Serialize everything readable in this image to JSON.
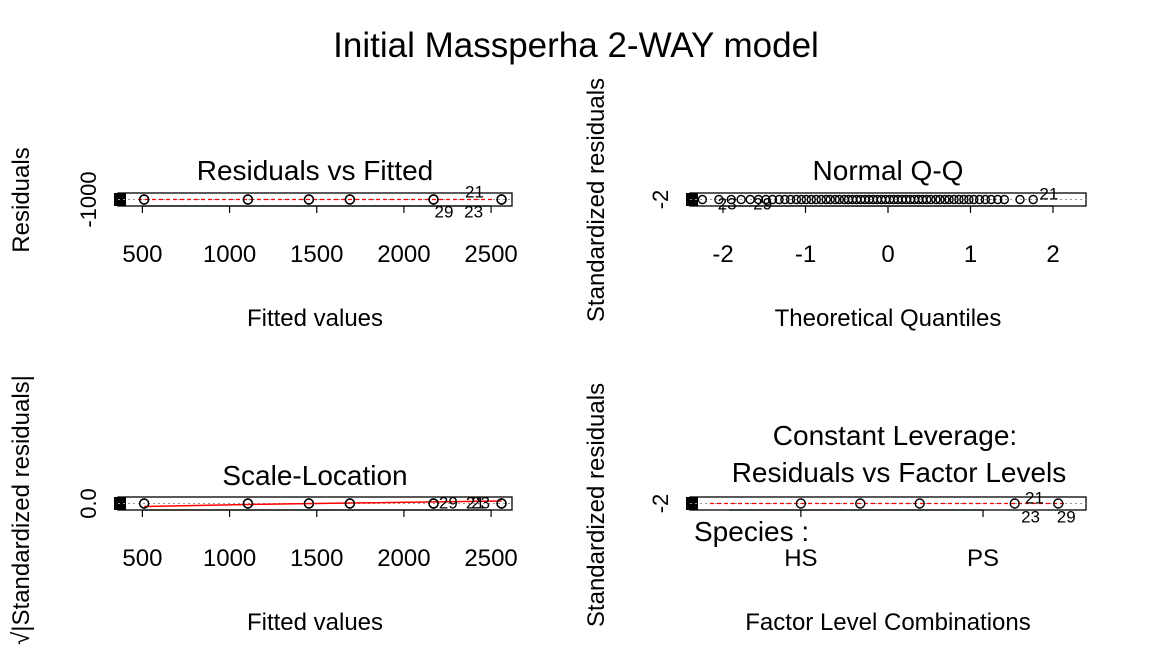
{
  "title": "Initial Massperha 2-WAY model",
  "chart_data": [
    {
      "id": "residuals-vs-fitted",
      "type": "scatter",
      "title": "Residuals vs Fitted",
      "xlabel": "Fitted values",
      "ylabel": "Residuals",
      "xticks": [
        500,
        1000,
        1500,
        2000,
        2500
      ],
      "yticks": [
        -1000
      ],
      "xlim": [
        360,
        2620
      ],
      "x": [
        510,
        510,
        1105,
        1105,
        1455,
        1455,
        1690,
        1690,
        2170,
        2170,
        2170,
        2560,
        2560,
        2560
      ],
      "y": [
        0,
        0,
        0,
        0,
        0,
        0,
        0,
        0,
        0,
        0,
        0,
        0,
        0,
        0
      ],
      "smoother_color": "#ff0000",
      "labels": [
        {
          "text": "21",
          "x": 2405
        },
        {
          "text": "29",
          "x": 2230
        },
        {
          "text": "23",
          "x": 2400
        }
      ]
    },
    {
      "id": "normal-qq",
      "type": "scatter",
      "title": "Normal Q-Q",
      "xlabel": "Theoretical Quantiles",
      "ylabel": "Standardized residuals",
      "xticks": [
        -2,
        -1,
        0,
        1,
        2
      ],
      "yticks": [
        -2
      ],
      "xlim": [
        -2.4,
        2.4
      ],
      "x": [
        -2.25,
        -2.05,
        -1.9,
        -1.78,
        -1.67,
        -1.57,
        -1.48,
        -1.4,
        -1.32,
        -1.25,
        -1.18,
        -1.11,
        -1.05,
        -0.99,
        -0.93,
        -0.87,
        -0.81,
        -0.75,
        -0.7,
        -0.64,
        -0.59,
        -0.53,
        -0.48,
        -0.43,
        -0.38,
        -0.33,
        -0.28,
        -0.23,
        -0.18,
        -0.13,
        -0.08,
        -0.03,
        0.02,
        0.07,
        0.12,
        0.17,
        0.22,
        0.27,
        0.32,
        0.37,
        0.42,
        0.47,
        0.52,
        0.58,
        0.63,
        0.69,
        0.74,
        0.8,
        0.86,
        0.92,
        0.98,
        1.04,
        1.11,
        1.18,
        1.25,
        1.33,
        1.41,
        1.6,
        1.76
      ],
      "labels": [
        {
          "text": "23",
          "x": -1.95
        },
        {
          "text": "29",
          "x": -1.52
        },
        {
          "text": "21",
          "x": 1.95
        }
      ]
    },
    {
      "id": "scale-location",
      "type": "scatter",
      "title": "Scale-Location",
      "xlabel": "Fitted values",
      "ylabel": "√|Standardized residuals|",
      "xticks": [
        500,
        1000,
        1500,
        2000,
        2500
      ],
      "yticks": [
        0.0
      ],
      "xlim": [
        360,
        2620
      ],
      "x": [
        510,
        510,
        1105,
        1105,
        1455,
        1455,
        1690,
        1690,
        2170,
        2170,
        2170,
        2560,
        2560,
        2560
      ],
      "smoother_color": "#ff0000",
      "labels": [
        {
          "text": "29",
          "x": 2255
        },
        {
          "text": "21",
          "x": 2410
        },
        {
          "text": "23",
          "x": 2440
        }
      ]
    },
    {
      "id": "constant-leverage",
      "type": "scatter",
      "title": "Constant Leverage:",
      "subtitle": "Residuals vs Factor Levels",
      "xlabel": "Factor Level Combinations",
      "ylabel": "Standardized residuals",
      "yticks": [
        -2
      ],
      "factor_label": "Species :",
      "factor_levels": [
        "HS",
        "PS"
      ],
      "x": [
        0.28,
        0.43,
        0.58,
        0.82,
        0.93,
        1.18
      ],
      "smoother_color": "#ff0000",
      "labels": [
        {
          "text": "21",
          "x": 0.87
        },
        {
          "text": "23",
          "x": 0.86
        },
        {
          "text": "29",
          "x": 0.95
        }
      ]
    }
  ]
}
